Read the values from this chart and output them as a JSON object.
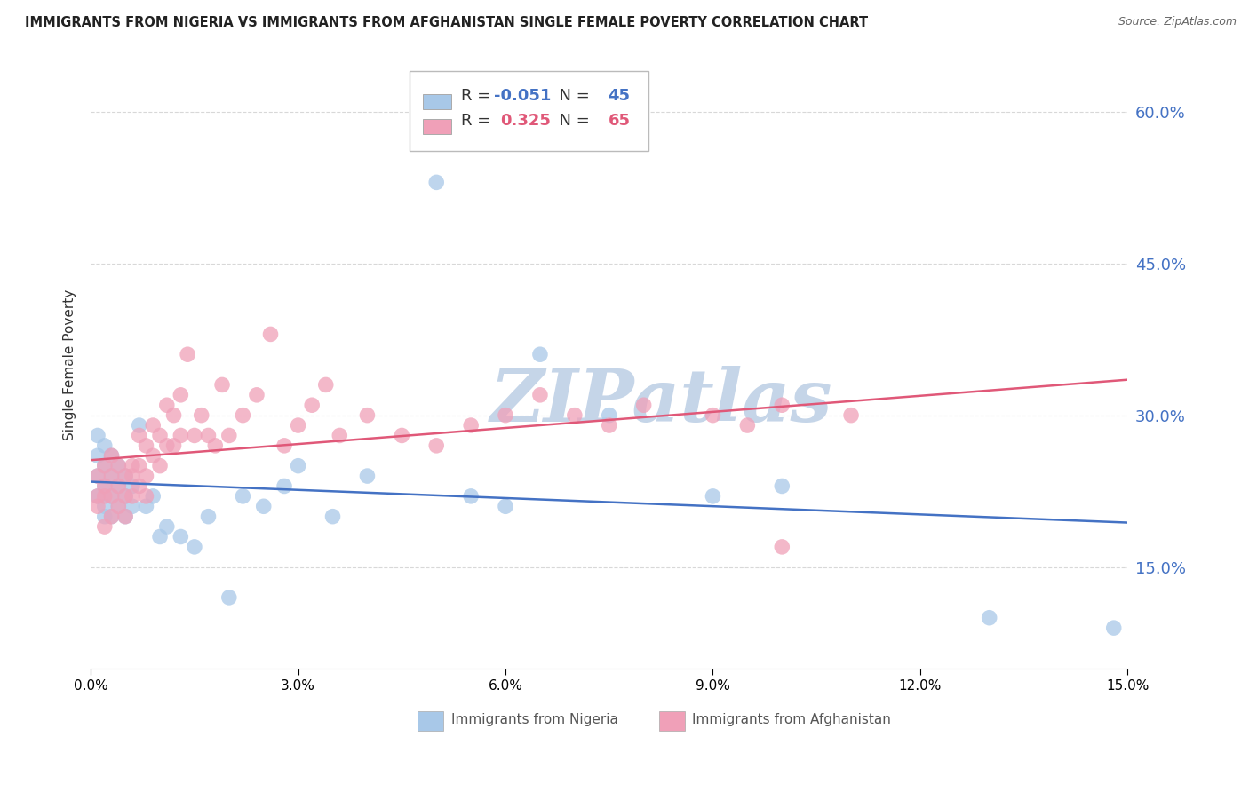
{
  "title": "IMMIGRANTS FROM NIGERIA VS IMMIGRANTS FROM AFGHANISTAN SINGLE FEMALE POVERTY CORRELATION CHART",
  "source": "Source: ZipAtlas.com",
  "ylabel": "Single Female Poverty",
  "legend1_label": "Immigrants from Nigeria",
  "legend2_label": "Immigrants from Afghanistan",
  "r_nigeria": -0.051,
  "n_nigeria": 45,
  "r_afghanistan": 0.325,
  "n_afghanistan": 65,
  "color_nigeria": "#a8c8e8",
  "color_afghanistan": "#f0a0b8",
  "line_color_nigeria": "#4472c4",
  "line_color_afghanistan": "#e05878",
  "xmin": 0.0,
  "xmax": 0.15,
  "ymin": 0.05,
  "ymax": 0.65,
  "yticks": [
    0.15,
    0.3,
    0.45,
    0.6
  ],
  "xticks": [
    0.0,
    0.03,
    0.06,
    0.09,
    0.12,
    0.15
  ],
  "background_color": "#ffffff",
  "grid_color": "#d8d8d8",
  "watermark": "ZIPatlas",
  "watermark_color": "#c5d5e8",
  "nigeria_x": [
    0.001,
    0.001,
    0.001,
    0.001,
    0.002,
    0.002,
    0.002,
    0.002,
    0.002,
    0.003,
    0.003,
    0.003,
    0.003,
    0.004,
    0.004,
    0.004,
    0.005,
    0.005,
    0.005,
    0.006,
    0.006,
    0.007,
    0.008,
    0.009,
    0.01,
    0.011,
    0.013,
    0.015,
    0.017,
    0.02,
    0.022,
    0.025,
    0.028,
    0.03,
    0.035,
    0.04,
    0.05,
    0.055,
    0.06,
    0.065,
    0.075,
    0.09,
    0.1,
    0.13,
    0.148
  ],
  "nigeria_y": [
    0.26,
    0.24,
    0.22,
    0.28,
    0.25,
    0.23,
    0.21,
    0.27,
    0.2,
    0.24,
    0.22,
    0.2,
    0.26,
    0.23,
    0.21,
    0.25,
    0.24,
    0.22,
    0.2,
    0.23,
    0.21,
    0.29,
    0.21,
    0.22,
    0.18,
    0.19,
    0.18,
    0.17,
    0.2,
    0.12,
    0.22,
    0.21,
    0.23,
    0.25,
    0.2,
    0.24,
    0.53,
    0.22,
    0.21,
    0.36,
    0.3,
    0.22,
    0.23,
    0.1,
    0.09
  ],
  "afghanistan_x": [
    0.001,
    0.001,
    0.001,
    0.002,
    0.002,
    0.002,
    0.002,
    0.003,
    0.003,
    0.003,
    0.003,
    0.004,
    0.004,
    0.004,
    0.005,
    0.005,
    0.005,
    0.006,
    0.006,
    0.006,
    0.007,
    0.007,
    0.007,
    0.008,
    0.008,
    0.008,
    0.009,
    0.009,
    0.01,
    0.01,
    0.011,
    0.011,
    0.012,
    0.012,
    0.013,
    0.013,
    0.014,
    0.015,
    0.016,
    0.017,
    0.018,
    0.019,
    0.02,
    0.022,
    0.024,
    0.026,
    0.028,
    0.03,
    0.032,
    0.034,
    0.036,
    0.04,
    0.045,
    0.05,
    0.055,
    0.06,
    0.065,
    0.07,
    0.075,
    0.08,
    0.09,
    0.095,
    0.1,
    0.11,
    0.1
  ],
  "afghanistan_y": [
    0.21,
    0.24,
    0.22,
    0.25,
    0.22,
    0.19,
    0.23,
    0.24,
    0.22,
    0.2,
    0.26,
    0.23,
    0.25,
    0.21,
    0.24,
    0.22,
    0.2,
    0.25,
    0.22,
    0.24,
    0.28,
    0.25,
    0.23,
    0.27,
    0.24,
    0.22,
    0.29,
    0.26,
    0.28,
    0.25,
    0.31,
    0.27,
    0.3,
    0.27,
    0.32,
    0.28,
    0.36,
    0.28,
    0.3,
    0.28,
    0.27,
    0.33,
    0.28,
    0.3,
    0.32,
    0.38,
    0.27,
    0.29,
    0.31,
    0.33,
    0.28,
    0.3,
    0.28,
    0.27,
    0.29,
    0.3,
    0.32,
    0.3,
    0.29,
    0.31,
    0.3,
    0.29,
    0.31,
    0.3,
    0.17
  ]
}
